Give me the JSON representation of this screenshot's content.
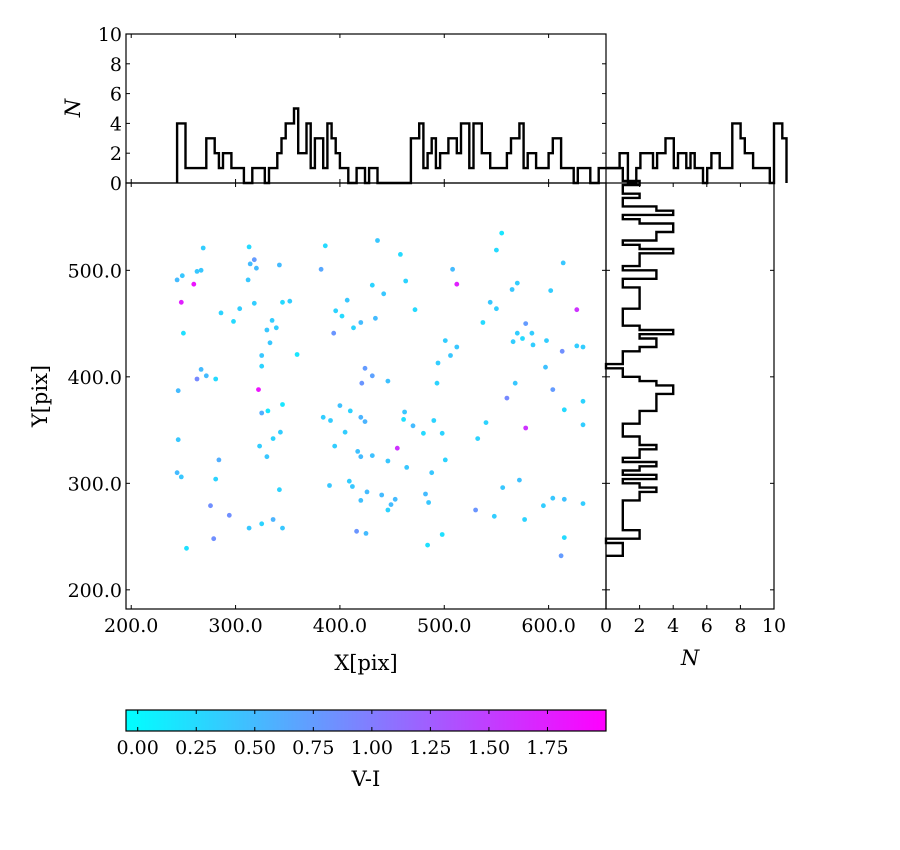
{
  "chart_data": [
    {
      "type": "scatter",
      "xlabel": "X[pix]",
      "ylabel": "Y[pix]",
      "xlim": [
        195,
        655
      ],
      "ylim": [
        182,
        582
      ],
      "xticks": [
        "200.0",
        "300.0",
        "400.0",
        "500.0",
        "600.0"
      ],
      "yticks": [
        "200.0",
        "300.0",
        "400.0",
        "500.0"
      ],
      "grid": false,
      "colormap": {
        "name": "cool",
        "label": "V-I",
        "range": [
          -0.05,
          2.0
        ],
        "low_color": "#00ffff",
        "high_color": "#ff00ff",
        "ticks": [
          "0.00",
          "0.25",
          "0.50",
          "0.75",
          "1.00",
          "1.25",
          "1.50",
          "1.75"
        ]
      },
      "points": [
        [
          244,
          491,
          0.5
        ],
        [
          249,
          495,
          0.4
        ],
        [
          260,
          487,
          1.85
        ],
        [
          248,
          470,
          1.75
        ],
        [
          267,
          500,
          0.4
        ],
        [
          263,
          499,
          0.4
        ],
        [
          269,
          521,
          0.35
        ],
        [
          250,
          441,
          0.2
        ],
        [
          263,
          398,
          0.9
        ],
        [
          267,
          407,
          0.5
        ],
        [
          272,
          401,
          0.5
        ],
        [
          281,
          398,
          0.25
        ],
        [
          245,
          387,
          0.5
        ],
        [
          245,
          341,
          0.4
        ],
        [
          244,
          310,
          0.5
        ],
        [
          248,
          306,
          0.4
        ],
        [
          281,
          304,
          0.3
        ],
        [
          284,
          322,
          0.6
        ],
        [
          276,
          279,
          0.85
        ],
        [
          294,
          270,
          0.85
        ],
        [
          279,
          248,
          0.85
        ],
        [
          253,
          239,
          0.2
        ],
        [
          286,
          460,
          0.3
        ],
        [
          298,
          452,
          0.25
        ],
        [
          304,
          464,
          0.35
        ],
        [
          312,
          491,
          0.4
        ],
        [
          314,
          506,
          0.5
        ],
        [
          318,
          510,
          0.75
        ],
        [
          320,
          502,
          0.5
        ],
        [
          313,
          522,
          0.25
        ],
        [
          318,
          469,
          0.35
        ],
        [
          322,
          388,
          1.85
        ],
        [
          325,
          420,
          0.4
        ],
        [
          325,
          410,
          0.3
        ],
        [
          330,
          444,
          0.4
        ],
        [
          333,
          432,
          0.4
        ],
        [
          325,
          366,
          0.6
        ],
        [
          331,
          368,
          0.15
        ],
        [
          345,
          374,
          0.15
        ],
        [
          336,
          342,
          0.3
        ],
        [
          343,
          348,
          0.35
        ],
        [
          323,
          335,
          0.35
        ],
        [
          330,
          325,
          0.4
        ],
        [
          336,
          266,
          0.55
        ],
        [
          345,
          258,
          0.4
        ],
        [
          325,
          262,
          0.3
        ],
        [
          313,
          258,
          0.4
        ],
        [
          342,
          294,
          0.3
        ],
        [
          335,
          453,
          0.35
        ],
        [
          339,
          446,
          0.35
        ],
        [
          345,
          470,
          0.25
        ],
        [
          352,
          471,
          0.35
        ],
        [
          342,
          505,
          0.5
        ],
        [
          359,
          421,
          0.15
        ],
        [
          382,
          501,
          0.65
        ],
        [
          386,
          523,
          0.25
        ],
        [
          394,
          441,
          0.8
        ],
        [
          396,
          462,
          0.3
        ],
        [
          402,
          457,
          0.25
        ],
        [
          407,
          472,
          0.4
        ],
        [
          413,
          446,
          0.3
        ],
        [
          420,
          451,
          0.5
        ],
        [
          434,
          455,
          0.5
        ],
        [
          431,
          486,
          0.3
        ],
        [
          436,
          528,
          0.4
        ],
        [
          442,
          478,
          0.4
        ],
        [
          458,
          515,
          0.25
        ],
        [
          463,
          490,
          0.3
        ],
        [
          472,
          463,
          0.25
        ],
        [
          431,
          401,
          0.7
        ],
        [
          424,
          408,
          0.75
        ],
        [
          421,
          394,
          0.8
        ],
        [
          446,
          396,
          0.45
        ],
        [
          400,
          373,
          0.45
        ],
        [
          391,
          359,
          0.35
        ],
        [
          384,
          362,
          0.35
        ],
        [
          395,
          335,
          0.35
        ],
        [
          405,
          348,
          0.35
        ],
        [
          410,
          368,
          0.3
        ],
        [
          420,
          362,
          0.55
        ],
        [
          424,
          358,
          0.55
        ],
        [
          417,
          330,
          0.45
        ],
        [
          420,
          325,
          0.5
        ],
        [
          431,
          326,
          0.45
        ],
        [
          446,
          321,
          0.4
        ],
        [
          455,
          333,
          1.6
        ],
        [
          461,
          360,
          0.2
        ],
        [
          462,
          367,
          0.4
        ],
        [
          464,
          315,
          0.4
        ],
        [
          470,
          354,
          0.5
        ],
        [
          480,
          347,
          0.25
        ],
        [
          490,
          359,
          0.3
        ],
        [
          498,
          347,
          0.3
        ],
        [
          409,
          302,
          0.35
        ],
        [
          412,
          297,
          0.4
        ],
        [
          426,
          292,
          0.5
        ],
        [
          420,
          284,
          0.45
        ],
        [
          440,
          289,
          0.5
        ],
        [
          446,
          275,
          0.3
        ],
        [
          453,
          285,
          0.5
        ],
        [
          482,
          290,
          0.5
        ],
        [
          485,
          282,
          0.4
        ],
        [
          488,
          310,
          0.4
        ],
        [
          498,
          252,
          0.2
        ],
        [
          484,
          242,
          0.2
        ],
        [
          416,
          255,
          0.8
        ],
        [
          425,
          253,
          0.5
        ],
        [
          390,
          298,
          0.4
        ],
        [
          449,
          280,
          0.5
        ],
        [
          506,
          420,
          0.4
        ],
        [
          512,
          428,
          0.4
        ],
        [
          501,
          434,
          0.35
        ],
        [
          494,
          413,
          0.35
        ],
        [
          508,
          501,
          0.5
        ],
        [
          512,
          487,
          1.75
        ],
        [
          537,
          451,
          0.25
        ],
        [
          550,
          464,
          0.35
        ],
        [
          544,
          470,
          0.4
        ],
        [
          550,
          519,
          0.25
        ],
        [
          555,
          535,
          0.15
        ],
        [
          560,
          380,
          0.9
        ],
        [
          566,
          433,
          0.35
        ],
        [
          570,
          441,
          0.35
        ],
        [
          575,
          436,
          0.25
        ],
        [
          578,
          450,
          0.75
        ],
        [
          584,
          441,
          0.35
        ],
        [
          585,
          430,
          0.35
        ],
        [
          598,
          434,
          0.35
        ],
        [
          613,
          424,
          0.85
        ],
        [
          614,
          507,
          0.4
        ],
        [
          602,
          481,
          0.35
        ],
        [
          565,
          482,
          0.4
        ],
        [
          570,
          488,
          0.35
        ],
        [
          568,
          394,
          0.4
        ],
        [
          597,
          409,
          0.45
        ],
        [
          604,
          388,
          0.75
        ],
        [
          615,
          369,
          0.25
        ],
        [
          627,
          429,
          0.35
        ],
        [
          633,
          428,
          0.35
        ],
        [
          633,
          377,
          0.3
        ],
        [
          627,
          463,
          1.6
        ],
        [
          633,
          355,
          0.35
        ],
        [
          578,
          352,
          1.6
        ],
        [
          540,
          357,
          0.3
        ],
        [
          548,
          269,
          0.35
        ],
        [
          556,
          296,
          0.4
        ],
        [
          577,
          266,
          0.3
        ],
        [
          572,
          303,
          0.45
        ],
        [
          595,
          279,
          0.35
        ],
        [
          604,
          286,
          0.4
        ],
        [
          615,
          285,
          0.45
        ],
        [
          633,
          281,
          0.35
        ],
        [
          615,
          249,
          0.25
        ],
        [
          612,
          232,
          0.75
        ],
        [
          530,
          275,
          0.8
        ],
        [
          532,
          342,
          0.3
        ],
        [
          501,
          322,
          0.3
        ],
        [
          493,
          394,
          0.3
        ]
      ]
    },
    {
      "type": "bar",
      "orientation": "vertical",
      "histtype": "step",
      "ylabel": "N",
      "ylim": [
        0,
        10
      ],
      "yticks": [
        "0",
        "2",
        "4",
        "6",
        "8",
        "10"
      ],
      "x_start": 244,
      "bin_width": 4,
      "counts": [
        4,
        4,
        1,
        1,
        1,
        1,
        1,
        3,
        3,
        2,
        1,
        2,
        2,
        1,
        1,
        1,
        0,
        0,
        1,
        1,
        1,
        0,
        1,
        1,
        2,
        3,
        4,
        4,
        5,
        2,
        2,
        4,
        1,
        3,
        3,
        1,
        4,
        3,
        2,
        1,
        1,
        0,
        0,
        1,
        1,
        0,
        1,
        1,
        0,
        0,
        0,
        0,
        0,
        0,
        0,
        0,
        3,
        3,
        4,
        1,
        2,
        3,
        1,
        2,
        2,
        3,
        3,
        2,
        4,
        4,
        1,
        4,
        4,
        2,
        2,
        1,
        1,
        1,
        1,
        2,
        3,
        3,
        4,
        1,
        2,
        2,
        1,
        1,
        1,
        2,
        3,
        3,
        1,
        1,
        1,
        0,
        1,
        1,
        1,
        0,
        0,
        1,
        1,
        1,
        1,
        1,
        2,
        2,
        0,
        0,
        1,
        2,
        2,
        2,
        1,
        2,
        2,
        3,
        3,
        1,
        2,
        2,
        1,
        2,
        1,
        1,
        0,
        1,
        2,
        2,
        1,
        1,
        1,
        4,
        4,
        3,
        2,
        2,
        1,
        1,
        1,
        1,
        0,
        4,
        4,
        3
      ]
    },
    {
      "type": "bar",
      "orientation": "horizontal",
      "histtype": "step",
      "xlabel": "N",
      "xlim": [
        0,
        10
      ],
      "xticks": [
        "0",
        "2",
        "4",
        "6",
        "8",
        "10"
      ],
      "y_start": 232,
      "bin_width": 4,
      "counts": [
        1,
        1,
        1,
        0,
        2,
        2,
        1,
        1,
        1,
        1,
        1,
        1,
        1,
        2,
        2,
        3,
        2,
        1,
        3,
        1,
        2,
        3,
        1,
        2,
        2,
        3,
        2,
        2,
        1,
        1,
        1,
        2,
        2,
        2,
        3,
        3,
        3,
        3,
        4,
        4,
        3,
        2,
        1,
        1,
        0,
        1,
        1,
        1,
        2,
        3,
        3,
        2,
        4,
        2,
        1,
        1,
        1,
        1,
        2,
        2,
        2,
        2,
        2,
        1,
        1,
        3,
        3,
        1,
        2,
        2,
        2,
        4,
        2,
        1,
        3,
        3,
        4,
        4,
        2,
        1,
        4,
        3,
        1,
        1,
        2,
        1,
        1,
        2,
        1,
        1,
        1
      ]
    }
  ]
}
